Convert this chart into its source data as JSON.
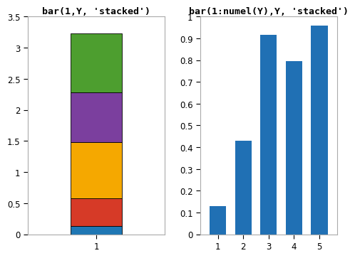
{
  "title_left": "bar(1,Y, 'stacked')",
  "title_right": "bar(1:numel(Y),Y, 'stacked')",
  "stacked_values": [
    0.13,
    0.45,
    0.9,
    0.8,
    0.95
  ],
  "stacked_colors": [
    "#1f77b4",
    "#d63a27",
    "#f5a800",
    "#7b3f9e",
    "#4d9e2f"
  ],
  "bar_values": [
    0.13,
    0.43,
    0.915,
    0.795,
    0.96
  ],
  "bar_color": "#2070b4",
  "left_ylim": [
    0,
    3.5
  ],
  "left_yticks": [
    0,
    0.5,
    1.0,
    1.5,
    2.0,
    2.5,
    3.0,
    3.5
  ],
  "right_ylim": [
    0,
    1.0
  ],
  "right_yticks": [
    0,
    0.1,
    0.2,
    0.3,
    0.4,
    0.5,
    0.6,
    0.7,
    0.8,
    0.9,
    1.0
  ],
  "left_xticks": [
    1
  ],
  "right_xticks": [
    1,
    2,
    3,
    4,
    5
  ],
  "bg_color": "#ffffff",
  "title_fontsize": 9.5,
  "tick_fontsize": 8.5,
  "left_bar_width": 0.45,
  "right_bar_width": 0.65,
  "left_xlim": [
    0.4,
    1.6
  ],
  "right_xlim": [
    0.3,
    5.7
  ]
}
